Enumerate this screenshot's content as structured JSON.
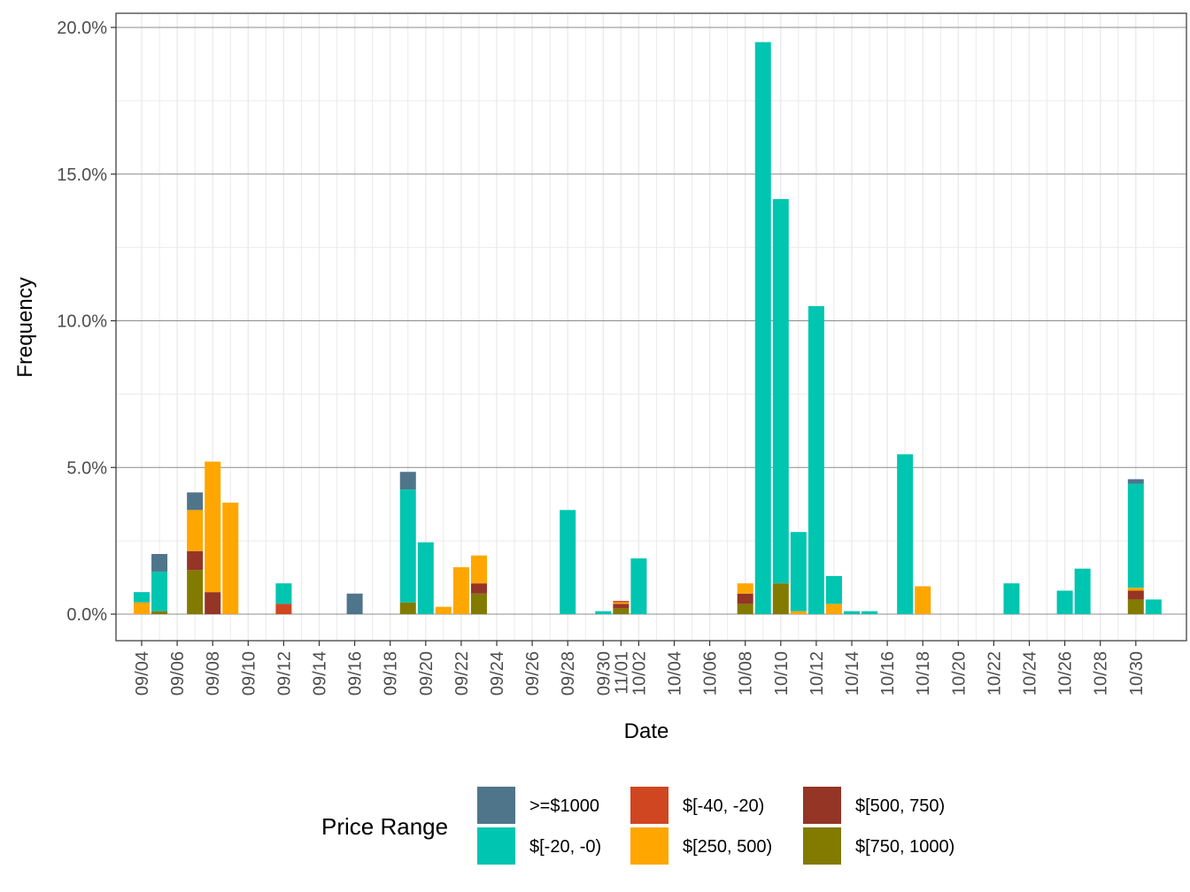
{
  "chart_data": {
    "type": "bar",
    "stacked": true,
    "xlabel": "Date",
    "ylabel": "Frequency",
    "ylim": [
      0,
      20
    ],
    "y_ticks": [
      0,
      5,
      10,
      15,
      20
    ],
    "y_tick_labels": [
      "0.0%",
      "5.0%",
      "10.0%",
      "15.0%",
      "20.0%"
    ],
    "x_range": [
      "09/02",
      "11/01"
    ],
    "x_tick_labels": [
      "09/04",
      "09/06",
      "09/08",
      "09/10",
      "09/12",
      "09/14",
      "09/16",
      "09/18",
      "09/20",
      "09/22",
      "09/24",
      "09/26",
      "09/28",
      "09/30",
      "10/02",
      "10/04",
      "10/06",
      "10/08",
      "10/10",
      "10/12",
      "10/14",
      "10/16",
      "10/18",
      "10/20",
      "10/22",
      "10/24",
      "10/26",
      "10/28",
      "10/30",
      "11/01"
    ],
    "grid": true,
    "legend": {
      "title": "Price Range",
      "position": "bottom"
    },
    "series": [
      {
        "name": ">=$1000",
        "color": "#4f758b",
        "values": [
          [
            "09/05",
            0.6
          ],
          [
            "09/07",
            0.6
          ],
          [
            "09/16",
            0.7
          ],
          [
            "09/19",
            0.6
          ],
          [
            "10/30",
            0.15
          ]
        ]
      },
      {
        "name": "$[-20, -0)",
        "color": "#00c5b0",
        "values": [
          [
            "09/04",
            0.35
          ],
          [
            "09/05",
            1.35
          ],
          [
            "09/12",
            0.7
          ],
          [
            "09/19",
            3.85
          ],
          [
            "09/20",
            2.45
          ],
          [
            "09/28",
            3.55
          ],
          [
            "09/30",
            0.1
          ],
          [
            "10/02",
            1.9
          ],
          [
            "10/09",
            19.5
          ],
          [
            "10/10",
            13.1
          ],
          [
            "10/11",
            2.7
          ],
          [
            "10/12",
            10.5
          ],
          [
            "10/13",
            0.95
          ],
          [
            "10/14",
            0.1
          ],
          [
            "10/15",
            0.1
          ],
          [
            "10/17",
            5.45
          ],
          [
            "10/23",
            1.05
          ],
          [
            "10/26",
            0.8
          ],
          [
            "10/27",
            1.55
          ],
          [
            "10/30",
            3.55
          ],
          [
            "10/31",
            0.5
          ]
        ]
      },
      {
        "name": "$[-40, -20)",
        "color": "#d04620",
        "values": [
          [
            "09/12",
            0.35
          ],
          [
            "10/01",
            0.05
          ]
        ]
      },
      {
        "name": "$[250, 500)",
        "color": "#ffa600",
        "values": [
          [
            "09/04",
            0.4
          ],
          [
            "09/07",
            1.4
          ],
          [
            "09/08",
            4.45
          ],
          [
            "09/09",
            3.8
          ],
          [
            "09/21",
            0.25
          ],
          [
            "09/22",
            1.6
          ],
          [
            "09/23",
            0.95
          ],
          [
            "10/01",
            0.05
          ],
          [
            "10/08",
            0.35
          ],
          [
            "10/11",
            0.1
          ],
          [
            "10/13",
            0.35
          ],
          [
            "10/18",
            0.95
          ],
          [
            "10/30",
            0.1
          ]
        ]
      },
      {
        "name": "$[500, 750)",
        "color": "#943526",
        "values": [
          [
            "09/07",
            0.65
          ],
          [
            "09/08",
            0.75
          ],
          [
            "09/23",
            0.35
          ],
          [
            "10/01",
            0.15
          ],
          [
            "10/08",
            0.35
          ],
          [
            "10/30",
            0.3
          ]
        ]
      },
      {
        "name": "$[750, 1000)",
        "color": "#837a00",
        "values": [
          [
            "09/05",
            0.1
          ],
          [
            "09/07",
            1.5
          ],
          [
            "09/19",
            0.4
          ],
          [
            "09/23",
            0.7
          ],
          [
            "10/01",
            0.2
          ],
          [
            "10/08",
            0.35
          ],
          [
            "10/10",
            1.05
          ],
          [
            "10/30",
            0.5
          ]
        ]
      }
    ]
  }
}
